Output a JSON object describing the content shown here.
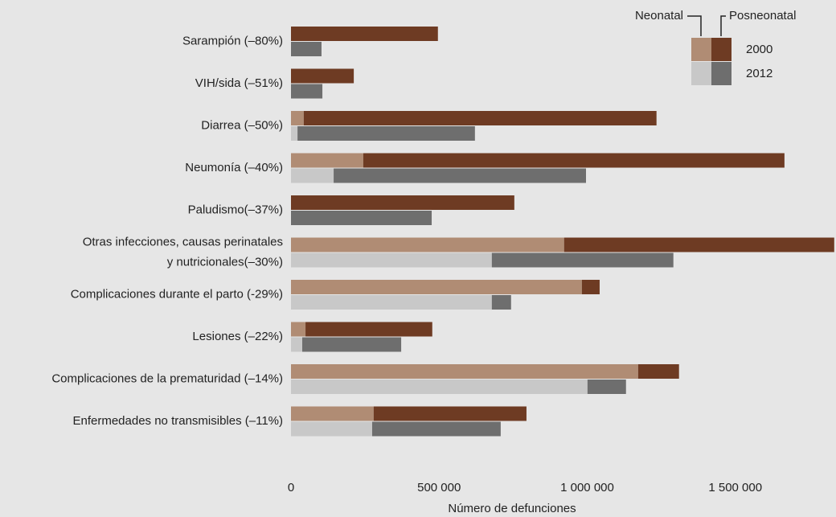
{
  "chart_data": {
    "type": "grouped-stacked-hbar",
    "x_label": "Número de defunciones",
    "categories": [
      "Sarampión (–80%)",
      "VIH/sida (–51%)",
      "Diarrea (–50%)",
      "Neumonía (–40%)",
      "Paludismo(–37%)",
      "Otras infecciones, causas perinatales\ny nutricionales(–30%)",
      "Complicaciones durante el parto (-29%)",
      "Lesiones (–22%)",
      "Complicaciones de la prematuridad (–14%)",
      "Enfermedades no transmisibles (–11%)"
    ],
    "groups": [
      {
        "name": "2000",
        "series": [
          {
            "name": "Neonatal",
            "color": "#b08c74",
            "values": [
              0,
              0,
              43000,
              244000,
              0,
              922000,
              982000,
              49000,
              1172000,
              279000
            ]
          },
          {
            "name": "Posneonatal",
            "color": "#6e3b23",
            "values": [
              496000,
              212000,
              1191000,
              1422000,
              754000,
              912000,
              60000,
              428000,
              138000,
              516000
            ]
          }
        ]
      },
      {
        "name": "2012",
        "series": [
          {
            "name": "Neonatal",
            "color": "#c8c8c8",
            "values": [
              0,
              0,
              22000,
              144000,
              0,
              678000,
              678000,
              38000,
              1001000,
              274000
            ]
          },
          {
            "name": "Posneonatal",
            "color": "#6e6e6e",
            "values": [
              103000,
              106000,
              599000,
              852000,
              475000,
              613000,
              65000,
              334000,
              130000,
              434000
            ]
          }
        ]
      }
    ],
    "xlim": [
      0,
      1840000
    ],
    "xticks": [
      0,
      {
        "value": 500000,
        "label": "500 000"
      },
      {
        "value": 1000000,
        "label": "1 000 000"
      },
      {
        "value": 1500000,
        "label": "1 500 000"
      }
    ]
  }
}
